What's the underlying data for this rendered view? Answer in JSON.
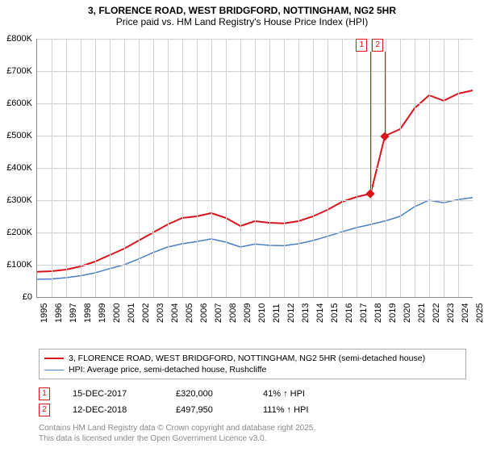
{
  "title": {
    "line1": "3, FLORENCE ROAD, WEST BRIDGFORD, NOTTINGHAM, NG2 5HR",
    "line2": "Price paid vs. HM Land Registry's House Price Index (HPI)"
  },
  "chart": {
    "type": "line",
    "background_color": "#ffffff",
    "grid_color": "#d0d0d0",
    "axis_color": "#888888",
    "ylim": [
      0,
      800
    ],
    "ytick_step": 100,
    "ytick_prefix": "£",
    "ytick_suffix": "K",
    "xlim": [
      1995,
      2025
    ],
    "xtick_step": 1,
    "label_fontsize": 11,
    "series": [
      {
        "name": "3, FLORENCE ROAD, WEST BRIDGFORD, NOTTINGHAM, NG2 5HR (semi-detached house)",
        "color": "#d8141c",
        "line_width": 2,
        "points": [
          [
            1995,
            78
          ],
          [
            1996,
            80
          ],
          [
            1997,
            85
          ],
          [
            1998,
            95
          ],
          [
            1999,
            110
          ],
          [
            2000,
            130
          ],
          [
            2001,
            150
          ],
          [
            2002,
            175
          ],
          [
            2003,
            200
          ],
          [
            2004,
            225
          ],
          [
            2005,
            245
          ],
          [
            2006,
            250
          ],
          [
            2007,
            260
          ],
          [
            2008,
            245
          ],
          [
            2009,
            220
          ],
          [
            2010,
            235
          ],
          [
            2011,
            230
          ],
          [
            2012,
            228
          ],
          [
            2013,
            235
          ],
          [
            2014,
            250
          ],
          [
            2015,
            270
          ],
          [
            2016,
            295
          ],
          [
            2017,
            310
          ],
          [
            2017.96,
            320
          ],
          [
            2018,
            325
          ],
          [
            2018.95,
            497.95
          ],
          [
            2019,
            500
          ],
          [
            2020,
            520
          ],
          [
            2021,
            585
          ],
          [
            2022,
            625
          ],
          [
            2023,
            608
          ],
          [
            2024,
            630
          ],
          [
            2025,
            640
          ]
        ]
      },
      {
        "name": "HPI: Average price, semi-detached house, Rushcliffe",
        "color": "#4a7fc4",
        "line_width": 1.5,
        "points": [
          [
            1995,
            55
          ],
          [
            1996,
            56
          ],
          [
            1997,
            60
          ],
          [
            1998,
            66
          ],
          [
            1999,
            75
          ],
          [
            2000,
            88
          ],
          [
            2001,
            100
          ],
          [
            2002,
            118
          ],
          [
            2003,
            138
          ],
          [
            2004,
            155
          ],
          [
            2005,
            165
          ],
          [
            2006,
            172
          ],
          [
            2007,
            180
          ],
          [
            2008,
            170
          ],
          [
            2009,
            155
          ],
          [
            2010,
            164
          ],
          [
            2011,
            160
          ],
          [
            2012,
            159
          ],
          [
            2013,
            165
          ],
          [
            2014,
            175
          ],
          [
            2015,
            188
          ],
          [
            2016,
            202
          ],
          [
            2017,
            215
          ],
          [
            2018,
            225
          ],
          [
            2019,
            236
          ],
          [
            2020,
            250
          ],
          [
            2021,
            280
          ],
          [
            2022,
            300
          ],
          [
            2023,
            292
          ],
          [
            2024,
            302
          ],
          [
            2025,
            308
          ]
        ]
      }
    ],
    "sale_markers": [
      {
        "label": "1",
        "x": 2017.96,
        "y": 320
      },
      {
        "label": "2",
        "x": 2018.95,
        "y": 497.95
      }
    ]
  },
  "legend": {
    "items": [
      {
        "color": "#d8141c",
        "width": 2,
        "text": "3, FLORENCE ROAD, WEST BRIDGFORD, NOTTINGHAM, NG2 5HR (semi-detached house)"
      },
      {
        "color": "#4a7fc4",
        "width": 1.5,
        "text": "HPI: Average price, semi-detached house, Rushcliffe"
      }
    ]
  },
  "sales": [
    {
      "marker": "1",
      "date": "15-DEC-2017",
      "price": "£320,000",
      "hpi": "41% ↑ HPI"
    },
    {
      "marker": "2",
      "date": "12-DEC-2018",
      "price": "£497,950",
      "hpi": "111% ↑ HPI"
    }
  ],
  "footer": {
    "line1": "Contains HM Land Registry data © Crown copyright and database right 2025.",
    "line2": "This data is licensed under the Open Government Licence v3.0."
  }
}
